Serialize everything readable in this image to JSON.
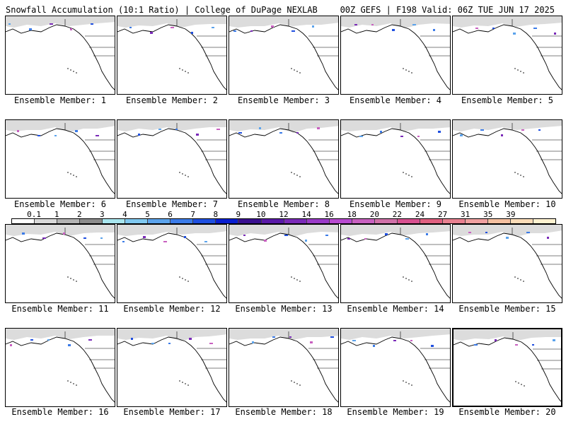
{
  "header": {
    "title_left": "Snowfall Accumulation (10:1 Ratio) | College of DuPage NEXLAB",
    "title_right": "00Z GEFS | F198 Valid: 06Z TUE JUN 17 2025"
  },
  "panels": [
    {
      "caption": "Ensemble Member: 1"
    },
    {
      "caption": "Ensemble Member: 2"
    },
    {
      "caption": "Ensemble Member: 3"
    },
    {
      "caption": "Ensemble Member: 4"
    },
    {
      "caption": "Ensemble Member: 5"
    },
    {
      "caption": "Ensemble Member: 6"
    },
    {
      "caption": "Ensemble Member: 7"
    },
    {
      "caption": "Ensemble Member: 8"
    },
    {
      "caption": "Ensemble Member: 9"
    },
    {
      "caption": "Ensemble Member: 10"
    },
    {
      "caption": "Ensemble Member: 11"
    },
    {
      "caption": "Ensemble Member: 12"
    },
    {
      "caption": "Ensemble Member: 13"
    },
    {
      "caption": "Ensemble Member: 14"
    },
    {
      "caption": "Ensemble Member: 15"
    },
    {
      "caption": "Ensemble Member: 16"
    },
    {
      "caption": "Ensemble Member: 17"
    },
    {
      "caption": "Ensemble Member: 18"
    },
    {
      "caption": "Ensemble Member: 19"
    },
    {
      "caption": "Ensemble Member: 20"
    }
  ],
  "color_scale": {
    "labels": [
      "0.1",
      "1",
      "2",
      "3",
      "4",
      "5",
      "6",
      "7",
      "8",
      "9",
      "10",
      "12",
      "14",
      "16",
      "18",
      "20",
      "22",
      "24",
      "27",
      "31",
      "35",
      "39"
    ],
    "colors": [
      "#ffffff",
      "#d9d9d9",
      "#b3b3b3",
      "#8c8c8c",
      "#a8e6ef",
      "#7fc8f0",
      "#5ba3ec",
      "#3b7be8",
      "#1f4fe0",
      "#0a1fd0",
      "#3a1090",
      "#5a1aa8",
      "#7a2ab8",
      "#9a3ac8",
      "#b84ad0",
      "#c860c0",
      "#d070a8",
      "#d85090",
      "#e06080",
      "#e88090",
      "#f0a0a0",
      "#f5c0a0",
      "#fbdcb8",
      "#fff2d0"
    ]
  }
}
